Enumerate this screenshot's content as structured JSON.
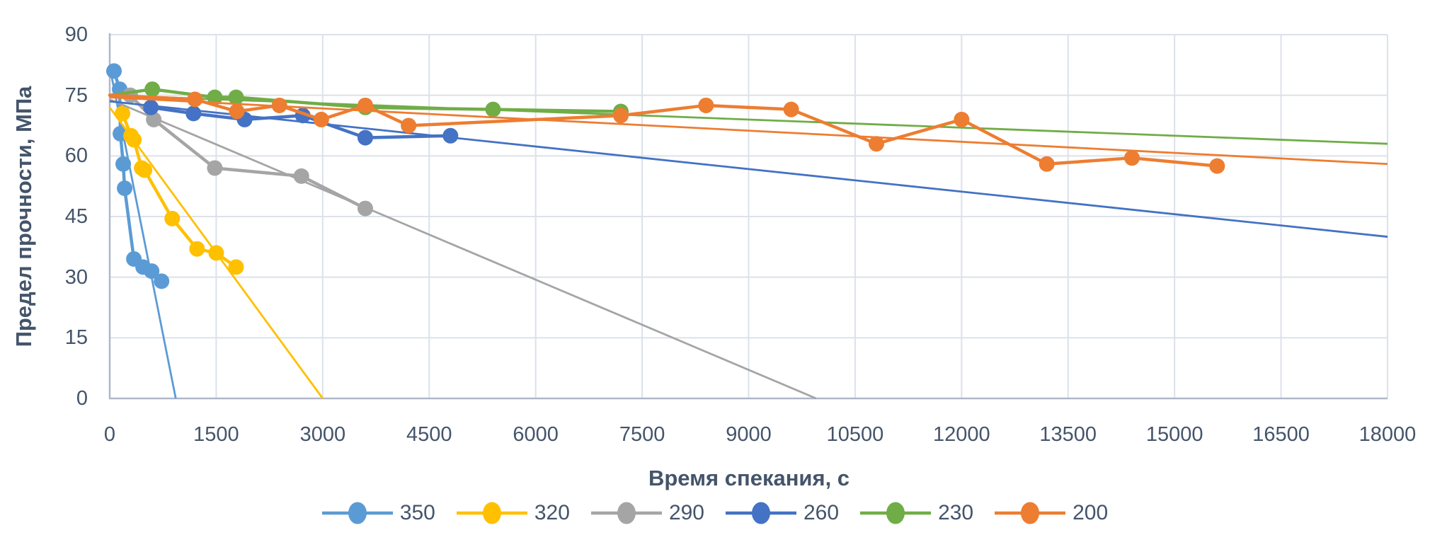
{
  "chart_data": {
    "type": "line",
    "title": "",
    "xlabel": "Время спекания, с",
    "ylabel": "Предел прочности, МПа",
    "xlim": [
      0,
      18000
    ],
    "ylim": [
      0,
      90
    ],
    "x_ticks": [
      0,
      1500,
      3000,
      4500,
      6000,
      7500,
      9000,
      10500,
      12000,
      13500,
      15000,
      16500,
      18000
    ],
    "y_ticks": [
      0,
      15,
      30,
      45,
      60,
      75,
      90
    ],
    "grid": true,
    "legend_position": "bottom",
    "text_color": "#44546A",
    "grid_color": "#DCE1EA",
    "axis_color": "#AFB8C9",
    "series": [
      {
        "name": "350",
        "color": "#5B9BD5",
        "points": [
          [
            60,
            81
          ],
          [
            140,
            76.5
          ],
          [
            150,
            65.5
          ],
          [
            190,
            58
          ],
          [
            210,
            52
          ],
          [
            340,
            34.5
          ],
          [
            470,
            32.5
          ],
          [
            590,
            31.5
          ],
          [
            730,
            29
          ]
        ],
        "trendline": [
          [
            0,
            82
          ],
          [
            930,
            0
          ]
        ]
      },
      {
        "name": "320",
        "color": "#FFC000",
        "points": [
          [
            180,
            70.5
          ],
          [
            300,
            65
          ],
          [
            340,
            64
          ],
          [
            450,
            57
          ],
          [
            490,
            56.5
          ],
          [
            880,
            44.5
          ],
          [
            1230,
            37
          ],
          [
            1500,
            36
          ],
          [
            1780,
            32.5
          ]
        ],
        "trendline": [
          [
            0,
            72
          ],
          [
            3000,
            0
          ]
        ]
      },
      {
        "name": "290",
        "color": "#A5A5A5",
        "points": [
          [
            290,
            75
          ],
          [
            620,
            69
          ],
          [
            1480,
            57
          ],
          [
            2700,
            55
          ],
          [
            3600,
            47
          ]
        ],
        "trendline": [
          [
            0,
            74
          ],
          [
            9950,
            0
          ]
        ]
      },
      {
        "name": "260",
        "color": "#4472C4",
        "points": [
          [
            580,
            72
          ],
          [
            1180,
            70.5
          ],
          [
            1900,
            69
          ],
          [
            2720,
            70
          ],
          [
            3600,
            64.5
          ],
          [
            4800,
            65
          ]
        ],
        "trendline": [
          [
            0,
            73.5
          ],
          [
            18000,
            40
          ]
        ]
      },
      {
        "name": "230",
        "color": "#70AD47",
        "line_start": [
          [
            0,
            75
          ]
        ],
        "points": [
          [
            600,
            76.5
          ],
          [
            1480,
            74.5
          ],
          [
            1780,
            74.5
          ],
          [
            3600,
            72
          ],
          [
            5400,
            71.5
          ],
          [
            7200,
            71
          ]
        ],
        "trendline": [
          [
            0,
            75
          ],
          [
            18000,
            63
          ]
        ]
      },
      {
        "name": "200",
        "color": "#ED7D31",
        "line_start": [
          [
            0,
            75
          ]
        ],
        "points": [
          [
            1200,
            74
          ],
          [
            1790,
            71
          ],
          [
            2390,
            72.5
          ],
          [
            2980,
            69
          ],
          [
            3600,
            72.5
          ],
          [
            4210,
            67.5
          ],
          [
            7200,
            70
          ],
          [
            8400,
            72.5
          ],
          [
            9600,
            71.5
          ],
          [
            10800,
            63
          ],
          [
            12000,
            69
          ],
          [
            13200,
            58
          ],
          [
            14400,
            59.5
          ],
          [
            15600,
            57.5
          ]
        ],
        "trendline": [
          [
            0,
            74.5
          ],
          [
            18000,
            58
          ]
        ]
      }
    ]
  }
}
